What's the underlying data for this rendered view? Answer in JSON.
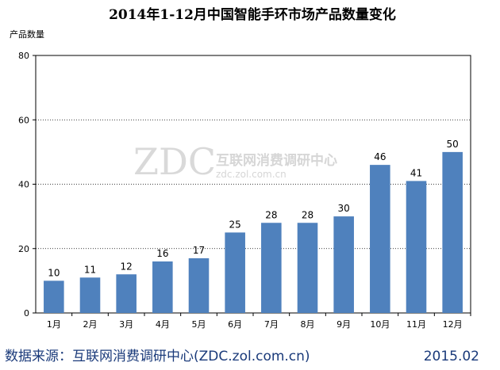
{
  "chart_data": {
    "type": "bar",
    "title": "2014年1-12月中国智能手环市场产品数量变化",
    "ylabel": "产品数量",
    "xlabel": "",
    "ylim": [
      0,
      80
    ],
    "yticks": [
      0,
      20,
      40,
      60,
      80
    ],
    "categories": [
      "1月",
      "2月",
      "3月",
      "4月",
      "5月",
      "6月",
      "7月",
      "8月",
      "9月",
      "10月",
      "11月",
      "12月"
    ],
    "values": [
      10,
      11,
      12,
      16,
      17,
      25,
      28,
      28,
      30,
      46,
      41,
      50
    ],
    "grid": true,
    "bar_color": "#4f81bd"
  },
  "watermark": {
    "logo": "ZDC",
    "text": "互联网消费调研中心",
    "url": "zdc.zol.com.cn"
  },
  "footer": {
    "source": "数据来源：互联网消费调研中心(ZDC.zol.com.cn)",
    "date": "2015.02"
  }
}
